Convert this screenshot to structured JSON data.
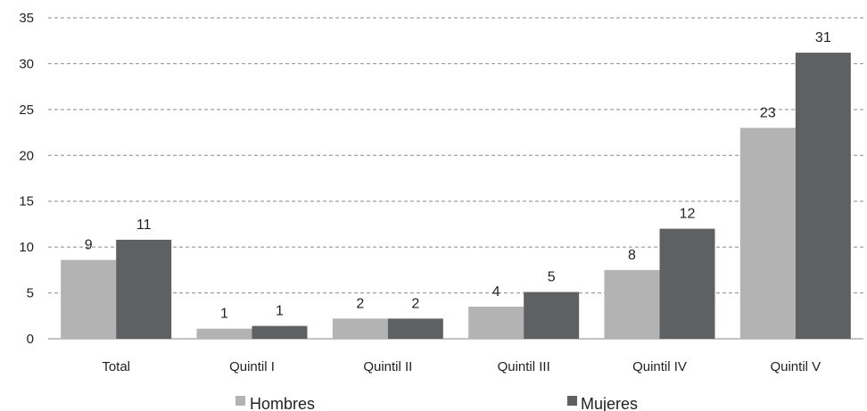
{
  "chart_data": {
    "type": "bar",
    "categories": [
      "Total",
      "Quintil I",
      "Quintil II",
      "Quintil III",
      "Quintil IV",
      "Quintil V"
    ],
    "series": [
      {
        "name": "Hombres",
        "values": [
          8.6,
          1.1,
          2.2,
          3.5,
          7.5,
          23.0
        ],
        "labels": [
          "9",
          "1",
          "2",
          "4",
          "8",
          "23"
        ],
        "color": "#b3b3b3"
      },
      {
        "name": "Mujeres",
        "values": [
          10.8,
          1.4,
          2.2,
          5.1,
          12.0,
          31.2
        ],
        "labels": [
          "11",
          "1",
          "2",
          "5",
          "12",
          "31"
        ],
        "color": "#5f6062"
      }
    ],
    "yticks": [
      "0",
      "5",
      "10",
      "15",
      "20",
      "25",
      "30",
      "35"
    ],
    "ylim": [
      0,
      35
    ],
    "grid": "dashed-horizontal",
    "legend_position": "bottom-center",
    "title": "",
    "xlabel": "",
    "ylabel": ""
  }
}
